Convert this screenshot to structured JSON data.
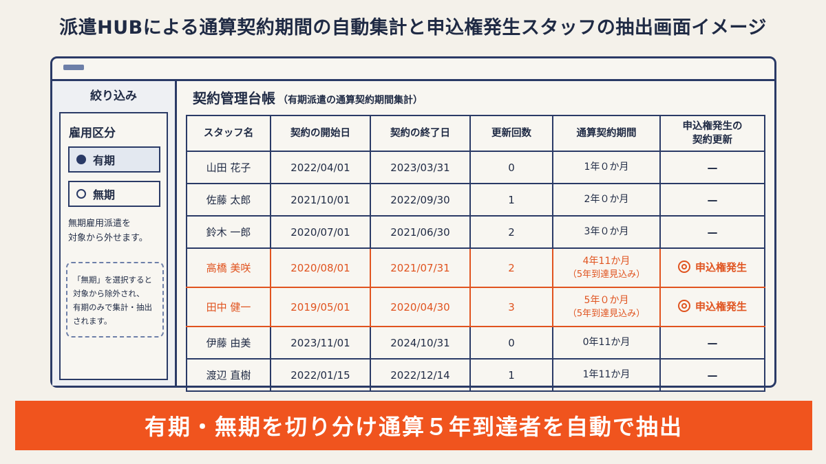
{
  "page_title": "派遣HUBによる通算契約期間の自動集計と申込権発生スタッフの抽出画面イメージ",
  "sidebar": {
    "header": "絞り込み",
    "filter_label": "雇用区分",
    "options": [
      {
        "label": "有期",
        "selected": true
      },
      {
        "label": "無期",
        "selected": false
      }
    ],
    "note_lines": [
      "無期雇用派遣を",
      "対象から外せます。"
    ],
    "help_lines": [
      "「無期」を選択すると",
      "対象から除外され、",
      "有期のみで集計・抽出",
      "されます。"
    ]
  },
  "main": {
    "title": "契約管理台帳",
    "subtitle": "（有期派遣の通算契約期間集計）"
  },
  "table": {
    "headers": [
      "スタッフ名",
      "契約の開始日",
      "契約の終了日",
      "更新回数",
      "通算契約期間",
      "申込権発生の\n契約更新"
    ],
    "header_lines": [
      [
        "スタッフ名"
      ],
      [
        "契約の開始日"
      ],
      [
        "契約の終了日"
      ],
      [
        "更新回数"
      ],
      [
        "通算契約期間"
      ],
      [
        "申込権発生の",
        "契約更新"
      ]
    ],
    "rows": [
      {
        "name": "山田 花子",
        "start": "2022/04/01",
        "end": "2023/03/31",
        "renewals": "0",
        "period": "1年０か月",
        "period_note": "",
        "right": "—",
        "alert": false
      },
      {
        "name": "佐藤 太郎",
        "start": "2021/10/01",
        "end": "2022/09/30",
        "renewals": "1",
        "period": "2年０か月",
        "period_note": "",
        "right": "—",
        "alert": false
      },
      {
        "name": "鈴木 一郎",
        "start": "2020/07/01",
        "end": "2021/06/30",
        "renewals": "2",
        "period": "3年０か月",
        "period_note": "",
        "right": "—",
        "alert": false
      },
      {
        "name": "高橋 美咲",
        "start": "2020/08/01",
        "end": "2021/07/31",
        "renewals": "2",
        "period": "4年11か月",
        "period_note": "（5年到達見込み）",
        "right": "申込権発生",
        "alert": true
      },
      {
        "name": "田中 健一",
        "start": "2019/05/01",
        "end": "2020/04/30",
        "renewals": "3",
        "period": "5年０か月",
        "period_note": "（5年到達見込み）",
        "right": "申込権発生",
        "alert": true
      },
      {
        "name": "伊藤 由美",
        "start": "2023/11/01",
        "end": "2024/10/31",
        "renewals": "0",
        "period": "0年11か月",
        "period_note": "",
        "right": "—",
        "alert": false
      },
      {
        "name": "渡辺 直樹",
        "start": "2022/01/15",
        "end": "2022/12/14",
        "renewals": "1",
        "period": "1年11か月",
        "period_note": "",
        "right": "—",
        "alert": false
      }
    ]
  },
  "banner": "有期・無期を切り分け通算５年到達者を自動で抽出",
  "colors": {
    "navy": "#2a3a66",
    "accent_orange": "#f0541e",
    "alert_text": "#e0531f",
    "background": "#f4f1ea"
  },
  "icons": {
    "alert_badge": "double-circle-icon",
    "titlebar": "window-bar-icon"
  }
}
